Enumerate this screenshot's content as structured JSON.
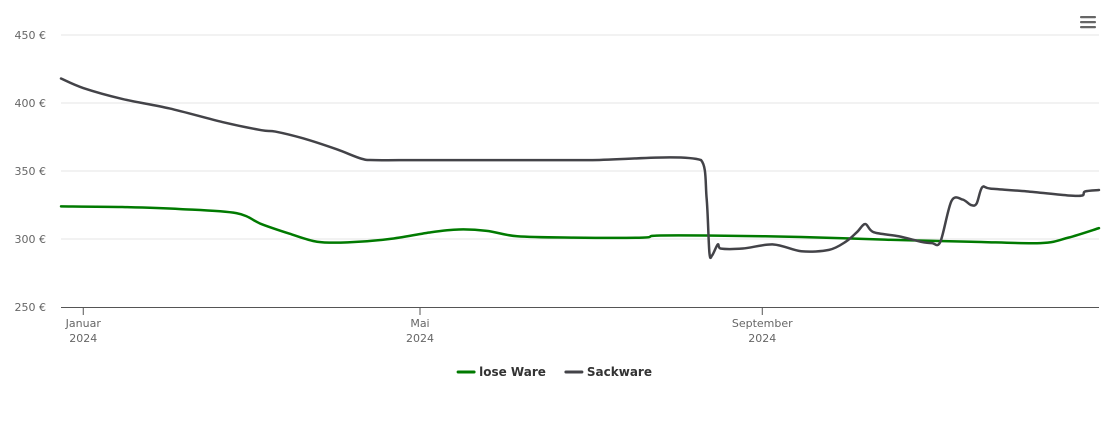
{
  "chart_data": {
    "type": "line",
    "title": "",
    "xlabel": "",
    "ylabel": "",
    "y_unit": "€",
    "ylim": [
      250,
      450
    ],
    "yticks": [
      {
        "value": 250,
        "label": "250 €"
      },
      {
        "value": 300,
        "label": "300 €"
      },
      {
        "value": 350,
        "label": "350 €"
      },
      {
        "value": 400,
        "label": "400 €"
      },
      {
        "value": 450,
        "label": "450 €"
      }
    ],
    "xlim": [
      "2023-12-24",
      "2024-12-31"
    ],
    "xticks": [
      {
        "date": "2024-01-01",
        "line1": "Januar",
        "line2": "2024"
      },
      {
        "date": "2024-05-01",
        "line1": "Mai",
        "line2": "2024"
      },
      {
        "date": "2024-09-01",
        "line1": "September",
        "line2": "2024"
      }
    ],
    "grid": true,
    "legend_position": "bottom-center",
    "series": [
      {
        "name": "lose Ware",
        "color": "#007a00",
        "points": [
          [
            "2023-12-24",
            324
          ],
          [
            "2024-01-15",
            323.5
          ],
          [
            "2024-02-05",
            322
          ],
          [
            "2024-02-25",
            319
          ],
          [
            "2024-03-05",
            311
          ],
          [
            "2024-03-15",
            304
          ],
          [
            "2024-03-25",
            298
          ],
          [
            "2024-04-05",
            297.5
          ],
          [
            "2024-04-20",
            300
          ],
          [
            "2024-05-05",
            305
          ],
          [
            "2024-05-15",
            307
          ],
          [
            "2024-05-25",
            306
          ],
          [
            "2024-06-05",
            302
          ],
          [
            "2024-06-25",
            301
          ],
          [
            "2024-07-20",
            301
          ],
          [
            "2024-07-25",
            302.5
          ],
          [
            "2024-08-15",
            302.5
          ],
          [
            "2024-09-15",
            301.5
          ],
          [
            "2024-10-15",
            299.5
          ],
          [
            "2024-11-15",
            298
          ],
          [
            "2024-12-10",
            297
          ],
          [
            "2024-12-20",
            301
          ],
          [
            "2024-12-31",
            308
          ]
        ]
      },
      {
        "name": "Sackware",
        "color": "#434348",
        "points": [
          [
            "2023-12-24",
            418
          ],
          [
            "2024-01-01",
            411
          ],
          [
            "2024-01-15",
            403
          ],
          [
            "2024-02-01",
            396
          ],
          [
            "2024-02-20",
            386
          ],
          [
            "2024-03-05",
            380
          ],
          [
            "2024-03-10",
            379
          ],
          [
            "2024-03-20",
            374
          ],
          [
            "2024-04-01",
            366
          ],
          [
            "2024-04-10",
            359
          ],
          [
            "2024-04-15",
            358
          ],
          [
            "2024-05-01",
            358
          ],
          [
            "2024-06-01",
            358
          ],
          [
            "2024-07-01",
            358
          ],
          [
            "2024-08-10",
            358
          ],
          [
            "2024-08-12",
            330
          ],
          [
            "2024-08-13",
            290
          ],
          [
            "2024-08-14",
            288
          ],
          [
            "2024-08-16",
            296
          ],
          [
            "2024-08-17",
            293
          ],
          [
            "2024-08-25",
            293
          ],
          [
            "2024-09-05",
            296
          ],
          [
            "2024-09-15",
            291
          ],
          [
            "2024-09-25",
            292
          ],
          [
            "2024-10-01",
            298
          ],
          [
            "2024-10-05",
            305
          ],
          [
            "2024-10-08",
            311
          ],
          [
            "2024-10-11",
            305
          ],
          [
            "2024-10-20",
            302
          ],
          [
            "2024-10-28",
            298
          ],
          [
            "2024-11-01",
            297
          ],
          [
            "2024-11-04",
            298
          ],
          [
            "2024-11-08",
            328
          ],
          [
            "2024-11-12",
            329
          ],
          [
            "2024-11-15",
            325
          ],
          [
            "2024-11-17",
            326
          ],
          [
            "2024-11-19",
            338
          ],
          [
            "2024-11-22",
            337
          ],
          [
            "2024-12-05",
            335
          ],
          [
            "2024-12-20",
            332
          ],
          [
            "2024-12-25",
            332
          ],
          [
            "2024-12-26",
            335
          ],
          [
            "2024-12-31",
            336
          ]
        ]
      }
    ]
  },
  "toolbar": {
    "menu_icon": "hamburger-menu-icon"
  }
}
